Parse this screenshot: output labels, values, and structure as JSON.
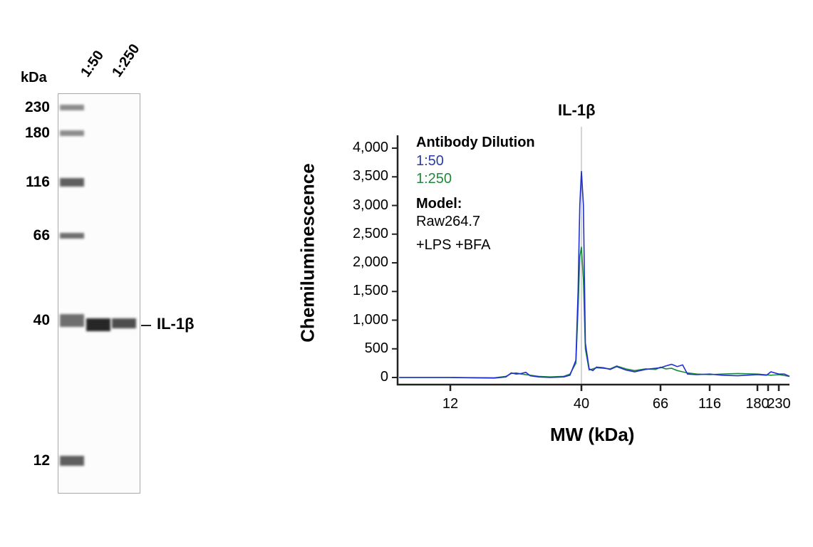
{
  "gel": {
    "unit_label": "kDa",
    "lanes": [
      "1:50",
      "1:250"
    ],
    "ladder": [
      "230",
      "180",
      "116",
      "66",
      "40",
      "12"
    ],
    "band_label": "IL-1β",
    "band_intensity": {
      "1:50": 0.85,
      "1:250": 0.7
    }
  },
  "chart_data": {
    "type": "line",
    "title": "IL-1β",
    "xlabel": "MW (kDa)",
    "ylabel": "Chemiluminescence",
    "ylim": [
      0,
      4000
    ],
    "yticks": [
      "0",
      "500",
      "1,000",
      "1,500",
      "2,000",
      "2,500",
      "3,000",
      "3,500",
      "4,000"
    ],
    "xticks": [
      "12",
      "40",
      "66",
      "116",
      "180",
      "230"
    ],
    "marker_line_x": 40,
    "legend": {
      "title": "Antibody Dilution",
      "model_title": "Model:",
      "model_lines": [
        "Raw264.7",
        "+LPS +BFA"
      ]
    },
    "series": [
      {
        "name": "1:50",
        "color": "#1f2fd0",
        "x": [
          7.5,
          12,
          18,
          20,
          21,
          22,
          23,
          24,
          25,
          27,
          30,
          34,
          36,
          38,
          38.8,
          39.4,
          40,
          40.5,
          41,
          42,
          43,
          44,
          46,
          48,
          50,
          53,
          56,
          60,
          64,
          66,
          70,
          75,
          80,
          85,
          90,
          100,
          116,
          130,
          150,
          180,
          200,
          210,
          230,
          245,
          260
        ],
        "y": [
          0,
          0,
          -10,
          10,
          80,
          60,
          70,
          90,
          30,
          10,
          0,
          10,
          40,
          300,
          1500,
          3000,
          3600,
          3000,
          600,
          150,
          120,
          180,
          170,
          140,
          190,
          130,
          100,
          140,
          160,
          170,
          200,
          230,
          190,
          220,
          60,
          50,
          60,
          40,
          30,
          50,
          40,
          100,
          60,
          60,
          20
        ]
      },
      {
        "name": "1:250",
        "color": "#1e8a3a",
        "x": [
          7.5,
          12,
          18,
          20,
          21,
          22,
          23,
          25,
          27,
          30,
          34,
          36,
          38,
          38.8,
          39.4,
          40,
          40.5,
          41,
          42,
          44,
          46,
          48,
          50,
          53,
          56,
          60,
          64,
          66,
          70,
          75,
          80,
          90,
          100,
          116,
          130,
          150,
          180,
          210,
          230,
          260
        ],
        "y": [
          0,
          0,
          -5,
          20,
          70,
          80,
          60,
          40,
          20,
          10,
          20,
          60,
          250,
          1200,
          2100,
          2280,
          1700,
          500,
          130,
          170,
          160,
          150,
          200,
          150,
          120,
          150,
          140,
          180,
          150,
          160,
          120,
          80,
          60,
          50,
          60,
          70,
          60,
          40,
          50,
          20
        ]
      }
    ]
  }
}
